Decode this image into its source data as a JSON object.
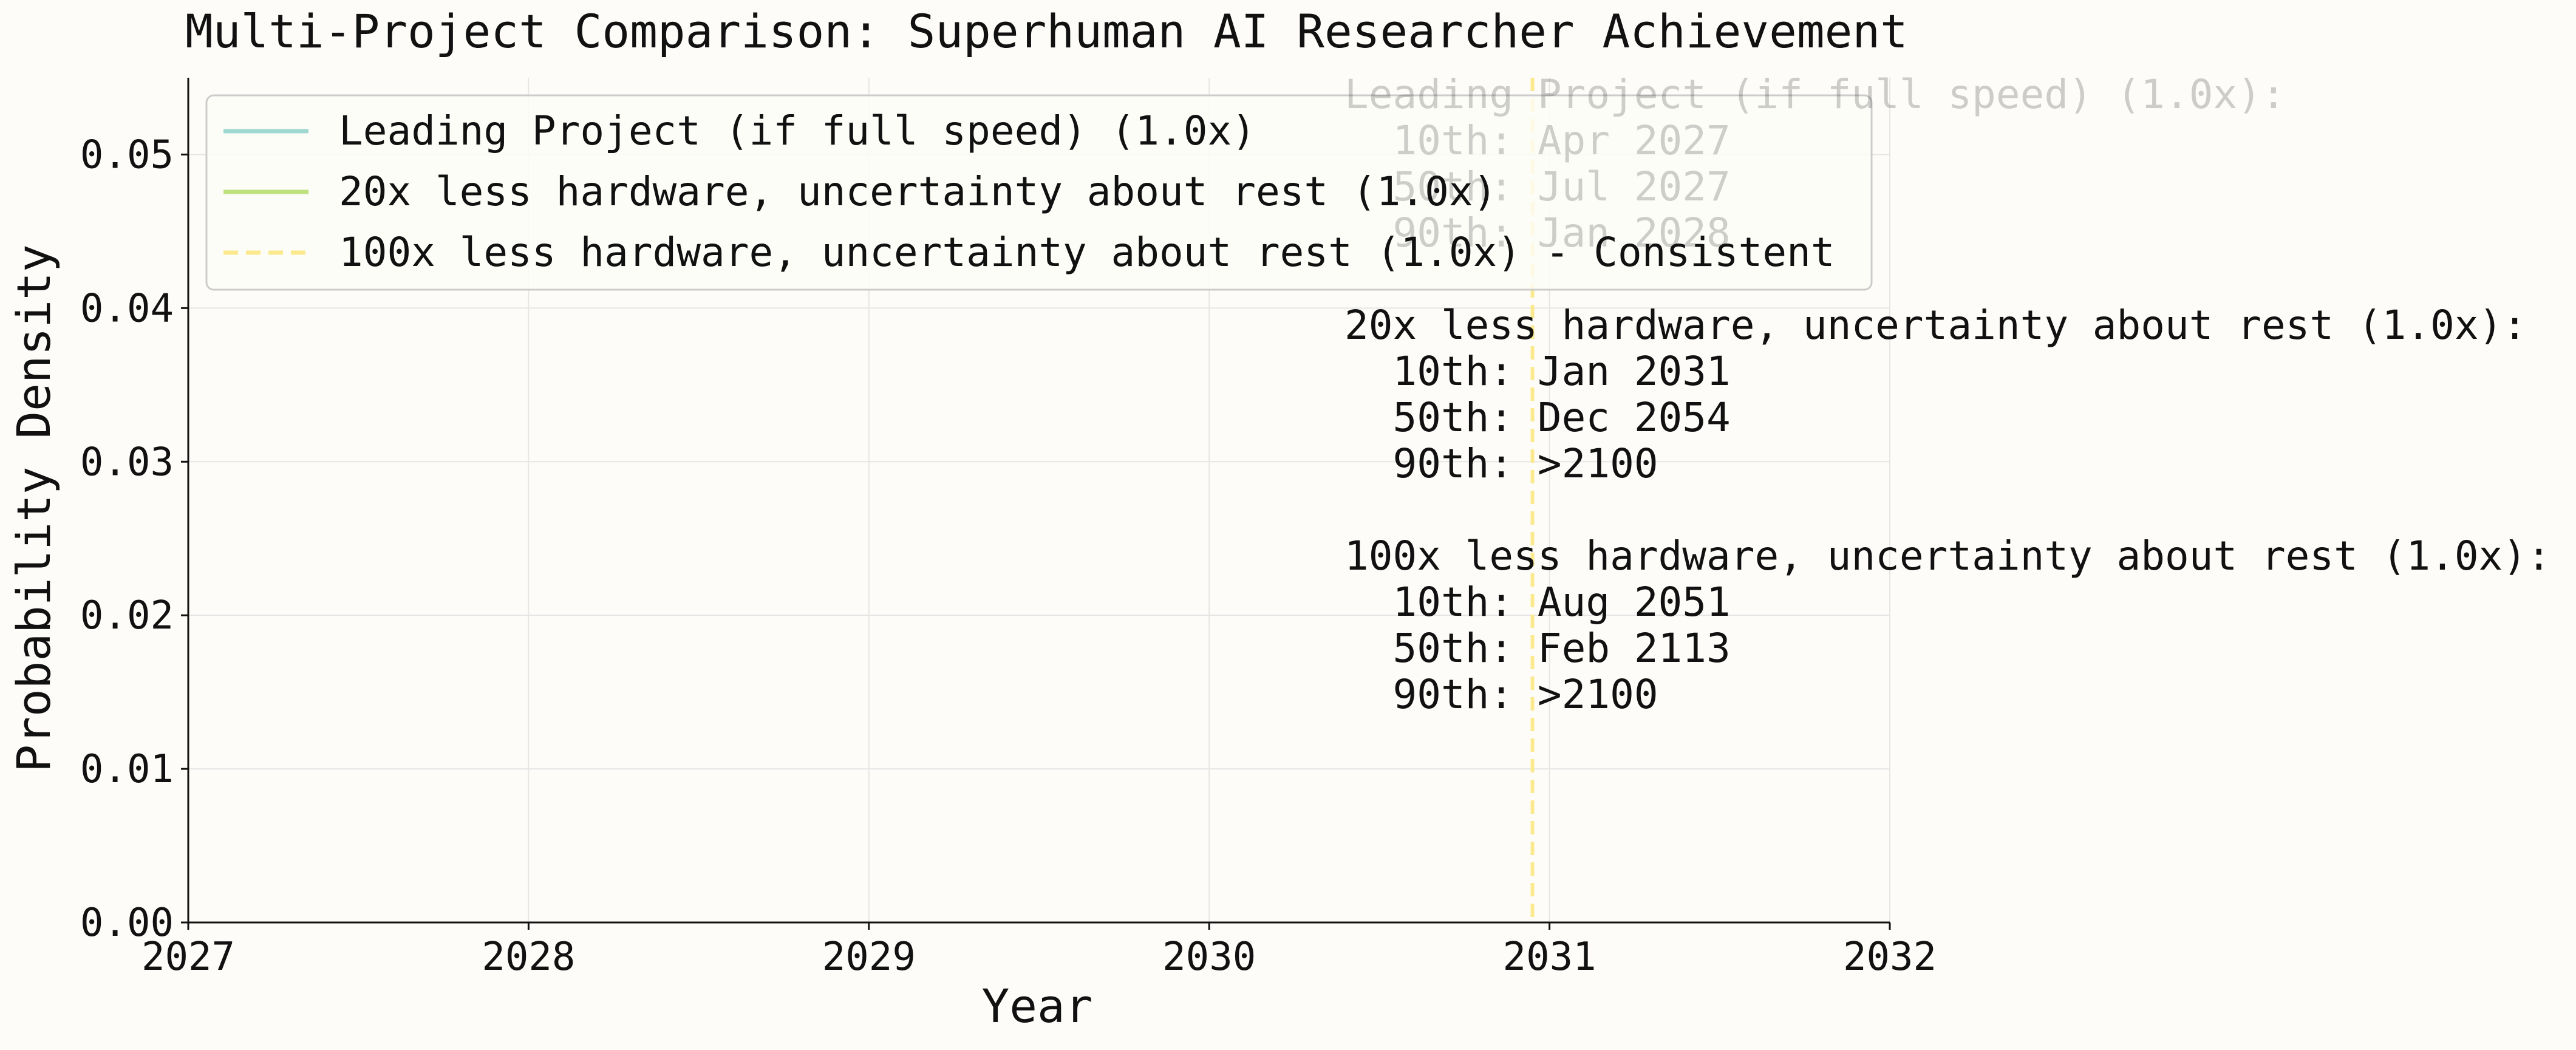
{
  "chart_data": {
    "type": "line",
    "title": "Multi-Project Comparison: Superhuman AI Researcher Achievement",
    "xlabel": "Year",
    "ylabel": "Probability Density",
    "xlim": [
      2027,
      2032
    ],
    "ylim": [
      0,
      0.055
    ],
    "x_ticks": [
      2027,
      2028,
      2029,
      2030,
      2031,
      2032
    ],
    "y_ticks": [
      0.0,
      0.01,
      0.02,
      0.03,
      0.04,
      0.05
    ],
    "x_tick_labels": [
      "2027",
      "2028",
      "2029",
      "2030",
      "2031",
      "2032"
    ],
    "y_tick_labels": [
      "0.00",
      "0.01",
      "0.02",
      "0.03",
      "0.04",
      "0.05"
    ],
    "grid": true,
    "legend_position": "top-left",
    "legend": [
      {
        "label": "Leading Project (if full speed) (1.0x)",
        "color": "#9fd8d0",
        "style": "solid"
      },
      {
        "label": "20x less hardware, uncertainty about rest (1.0x)",
        "color": "#bfe27e",
        "style": "solid"
      },
      {
        "label": "100x less hardware, uncertainty about rest (1.0x) - Consistent",
        "color": "#fbe98d",
        "style": "dashed"
      }
    ],
    "series": [
      {
        "name": "Leading Project (if full speed) (1.0x)",
        "x": [],
        "y": []
      },
      {
        "name": "20x less hardware, uncertainty about rest (1.0x)",
        "x": [],
        "y": []
      },
      {
        "name": "100x less hardware, uncertainty about rest (1.0x) - Consistent",
        "x": [],
        "y": []
      }
    ],
    "vlines": [
      {
        "x": 2030.95,
        "color": "#fbe98d",
        "style": "dashed"
      }
    ],
    "annotation_lines": [
      {
        "text": "Leading Project (if full speed) (1.0x):",
        "faded": true
      },
      {
        "text": "  10th: Apr 2027",
        "faded": true
      },
      {
        "text": "  50th: Jul 2027",
        "faded": true
      },
      {
        "text": "  90th: Jan 2028",
        "faded": true
      },
      {
        "text": "",
        "faded": false
      },
      {
        "text": "20x less hardware, uncertainty about rest (1.0x):",
        "faded": false
      },
      {
        "text": "  10th: Jan 2031",
        "faded": false
      },
      {
        "text": "  50th: Dec 2054",
        "faded": false
      },
      {
        "text": "  90th: >2100",
        "faded": false
      },
      {
        "text": "",
        "faded": false
      },
      {
        "text": "100x less hardware, uncertainty about rest (1.0x):",
        "faded": false
      },
      {
        "text": "  10th: Aug 2051",
        "faded": false
      },
      {
        "text": "  50th: Feb 2113",
        "faded": false
      },
      {
        "text": "  90th: >2100",
        "faded": false
      }
    ]
  }
}
